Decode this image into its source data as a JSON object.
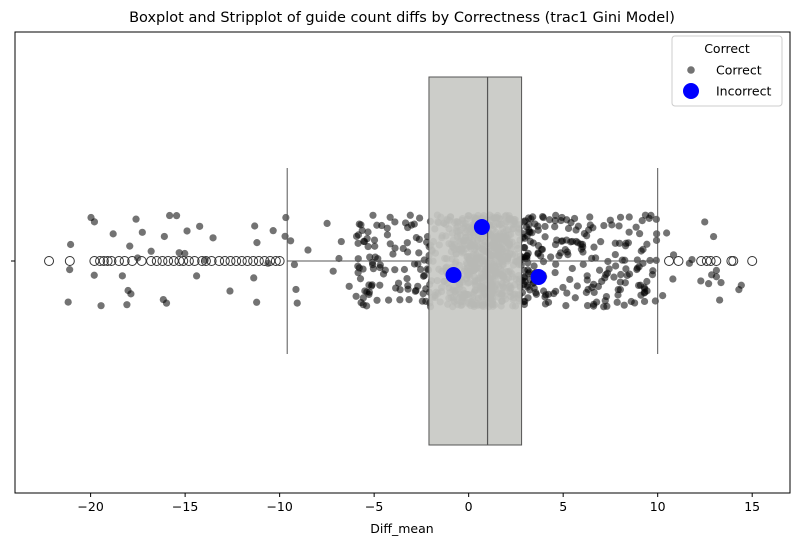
{
  "chart_data": {
    "type": "boxplot+stripplot",
    "title": "Boxplot and Stripplot of guide count diffs by Correctness (trac1 Gini Model)",
    "xlabel": "Diff_mean",
    "ylabel": "",
    "xlim": [
      -24,
      17
    ],
    "x_ticks": [
      -20,
      -15,
      -10,
      -5,
      0,
      5,
      10,
      15
    ],
    "x_tick_labels": [
      "−20",
      "−15",
      "−10",
      "−5",
      "0",
      "5",
      "10",
      "15"
    ],
    "grid": false,
    "box": {
      "q1": -2.1,
      "median": 1.0,
      "q3": 2.8,
      "whisker_low": -9.6,
      "whisker_high": 10.0,
      "fill": "#c8c9c4",
      "edge": "#555555"
    },
    "outliers": [
      -22.2,
      -21.1,
      -19.8,
      -19.5,
      -19.3,
      -19.1,
      -18.9,
      -18.5,
      -18.2,
      -17.8,
      -17.3,
      -16.8,
      -16.5,
      -16.2,
      -15.9,
      -15.6,
      -15.3,
      -15.1,
      -14.8,
      -14.5,
      -14.1,
      -13.9,
      -13.6,
      -13.2,
      -12.9,
      -12.6,
      -12.3,
      -12.0,
      -11.7,
      -11.4,
      -11.1,
      -10.8,
      -10.5,
      -10.2,
      -10.0,
      10.6,
      11.1,
      12.3,
      12.6,
      12.8,
      13.1,
      13.9,
      14.0,
      15.0
    ],
    "series": [
      {
        "name": "Correct",
        "color": "#000000",
        "opacity": 0.55,
        "n_points": 1000,
        "x_range": [
          -22.2,
          15.0
        ],
        "note_density": "dense between -2 and 5"
      },
      {
        "name": "Incorrect",
        "color": "#0000ff",
        "points": [
          {
            "x": 0.7,
            "jitter": -0.17
          },
          {
            "x": -0.8,
            "jitter": 0.07
          },
          {
            "x": 3.7,
            "jitter": 0.08
          }
        ]
      }
    ],
    "legend": {
      "title": "Correct",
      "placement": "top-right",
      "entries": [
        "Correct",
        "Incorrect"
      ]
    }
  }
}
